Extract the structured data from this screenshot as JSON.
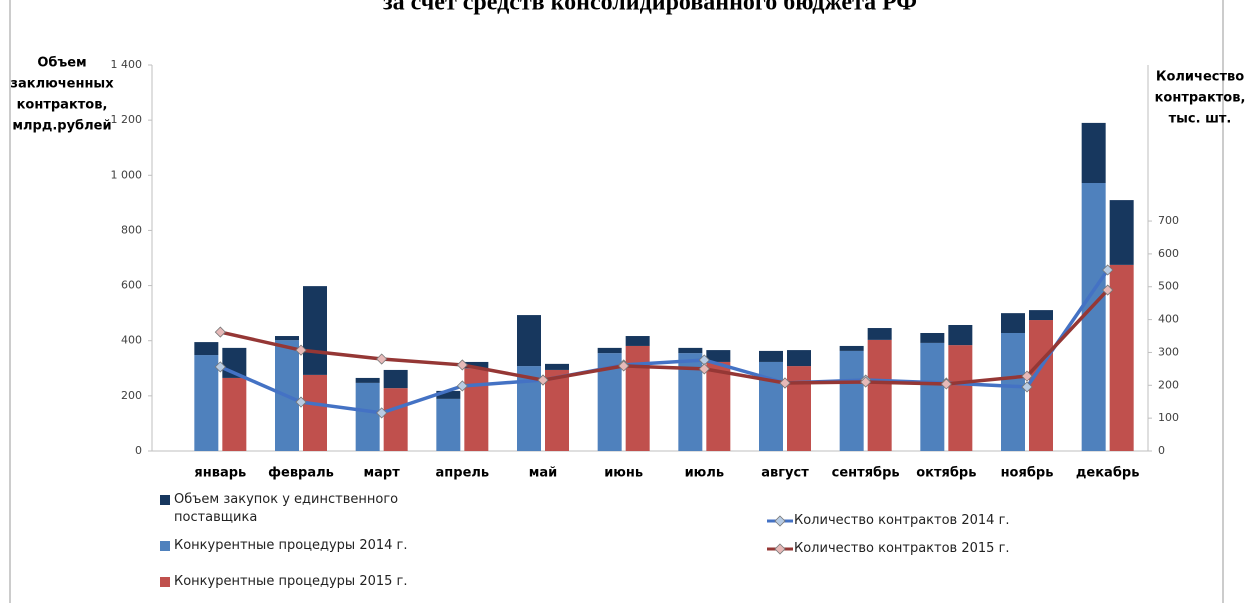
{
  "chart_data": {
    "type": "bar-line",
    "title": "за счет средств консолидированного бюджета РФ",
    "y_label": [
      "Объем",
      "заключенных",
      "контрактов,",
      "млрд.рублей"
    ],
    "y2_label": [
      "Количество",
      "контрактов,",
      "тыс. шт."
    ],
    "categories": [
      "январь",
      "февраль",
      "март",
      "апрель",
      "май",
      "июнь",
      "июль",
      "август",
      "сентябрь",
      "октябрь",
      "ноябрь",
      "декабрь"
    ],
    "ylim": [
      0,
      1400
    ],
    "yticks": [
      0,
      200,
      400,
      600,
      800,
      {
        "value": 1000,
        "label": "1 000"
      },
      {
        "value": 1200,
        "label": "1 200"
      },
      {
        "value": 1400,
        "label": "1 400"
      }
    ],
    "y2lim": [
      0,
      1175
    ],
    "y2ticks": [
      0,
      100,
      200,
      300,
      400,
      500,
      600,
      700
    ],
    "bar_series": [
      {
        "name": "Конкурентные процедуры 2014 г.",
        "color": "#4f81bd",
        "group": 0,
        "values": [
          348,
          402,
          247,
          189,
          308,
          355,
          355,
          323,
          363,
          392,
          428,
          972
        ]
      },
      {
        "name": "Конкурентные процедуры 2015 г.",
        "color": "#c0504d",
        "group": 1,
        "values": [
          265,
          276,
          228,
          300,
          294,
          381,
          323,
          308,
          403,
          384,
          475,
          675
        ]
      },
      {
        "name": "Объем закупок у единственного поставщика",
        "color": "#17375e",
        "values": [
          [
            47,
            15,
            18,
            29,
            185,
            19,
            19,
            40,
            18,
            36,
            72,
            218
          ],
          [
            109,
            322,
            66,
            23,
            22,
            36,
            43,
            58,
            43,
            73,
            36,
            235
          ]
        ]
      }
    ],
    "line_series": [
      {
        "name": "Количество контрактов 2014 г.",
        "color": "#4472c4",
        "marker_color": "#b8cce4",
        "axis": "y2",
        "values": [
          256,
          149,
          116,
          198,
          216,
          262,
          277,
          207,
          216,
          207,
          195,
          551
        ]
      },
      {
        "name": "Количество контрактов 2015 г.",
        "color": "#953735",
        "marker_color": "#e6b9b8",
        "axis": "y2",
        "values": [
          362,
          307,
          280,
          262,
          216,
          259,
          250,
          207,
          210,
          204,
          228,
          490
        ]
      }
    ]
  }
}
